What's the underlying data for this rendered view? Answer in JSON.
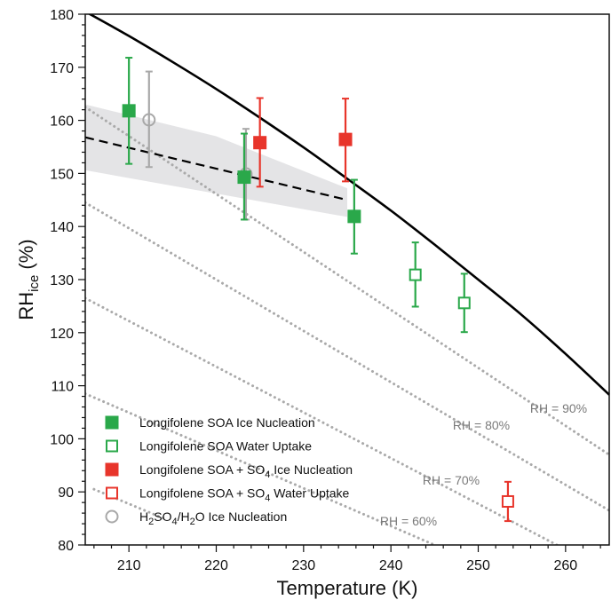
{
  "chart_data": {
    "type": "scatter",
    "xlabel": "Temperature (K)",
    "ylabel": {
      "main": "RH",
      "sub": "ice",
      "rest": " (%)"
    },
    "xlim": [
      205,
      265
    ],
    "ylim": [
      80,
      180
    ],
    "xticks_labeled": [
      210,
      220,
      230,
      240,
      250,
      260
    ],
    "yticks_labeled": [
      80,
      90,
      100,
      110,
      120,
      130,
      140,
      150,
      160,
      170,
      180
    ],
    "x_minor_step": 2,
    "y_minor_step": 2,
    "grid": false,
    "legend_position": "bottom-left",
    "water_saturation_line": {
      "style": "solid",
      "color": "#000000",
      "x": [
        205,
        210,
        215,
        220,
        225,
        230,
        235,
        240,
        245,
        250,
        255,
        260,
        265
      ],
      "y": [
        180.5,
        175.9,
        171.0,
        165.9,
        160.5,
        154.9,
        149.0,
        143.0,
        136.6,
        130.0,
        123.3,
        116.0,
        108.3
      ]
    },
    "fit_line": {
      "style": "dashed",
      "color": "#000000",
      "x": [
        205,
        235
      ],
      "y": [
        156.8,
        145.0
      ]
    },
    "uncertainty_band": {
      "color": "#e4e4e6",
      "x": [
        205,
        220,
        235
      ],
      "upper": [
        163.0,
        157.0,
        147.2
      ],
      "lower": [
        150.6,
        146.2,
        141.8
      ]
    },
    "rh_isolines": [
      {
        "label": "RH = 90%",
        "color": "#aaaaaa",
        "x": [
          205,
          265
        ],
        "y": [
          162.5,
          97.0
        ]
      },
      {
        "label": "RH = 80%",
        "color": "#aaaaaa",
        "x": [
          205,
          265
        ],
        "y": [
          144.5,
          86.5
        ]
      },
      {
        "label": "RH = 70%",
        "color": "#aaaaaa",
        "x": [
          205,
          259
        ],
        "y": [
          126.5,
          80.0
        ]
      },
      {
        "label": "RH = 60%",
        "color": "#aaaaaa",
        "x": [
          205,
          245
        ],
        "y": [
          108.5,
          80.0
        ]
      },
      {
        "label": "",
        "color": "#aaaaaa",
        "x": [
          206,
          214
        ],
        "y": [
          90.5,
          85.0
        ]
      }
    ],
    "series": [
      {
        "name": "Longifolene SOA Ice Nucleation",
        "marker": "square-filled",
        "color": "#2aa84a",
        "points": [
          {
            "x": 210.0,
            "y": 161.8,
            "err_up": 171.8,
            "err_down": 151.8
          },
          {
            "x": 223.2,
            "y": 149.3,
            "err_up": 157.5,
            "err_down": 141.3
          },
          {
            "x": 235.8,
            "y": 141.9,
            "err_up": 148.8,
            "err_down": 134.9
          }
        ]
      },
      {
        "name": "Longifolene SOA Water Uptake",
        "marker": "square-open",
        "color": "#2aa84a",
        "points": [
          {
            "x": 242.8,
            "y": 130.9,
            "err_up": 137.0,
            "err_down": 124.9
          },
          {
            "x": 248.4,
            "y": 125.6,
            "err_up": 131.1,
            "err_down": 120.1
          }
        ]
      },
      {
        "name": "Longifolene SOA + SO4 Ice Nucleation",
        "marker": "square-filled",
        "color": "#e8352b",
        "points": [
          {
            "x": 225.0,
            "y": 155.8,
            "err_up": 164.2,
            "err_down": 147.5
          },
          {
            "x": 234.8,
            "y": 156.4,
            "err_up": 164.1,
            "err_down": 148.5
          }
        ]
      },
      {
        "name": "Longifolene SOA + SO4 Water Uptake",
        "marker": "square-open",
        "color": "#e8352b",
        "points": [
          {
            "x": 253.4,
            "y": 88.2,
            "err_up": 91.9,
            "err_down": 84.5
          }
        ]
      },
      {
        "name": "H2SO4/H2O Ice Nucleation",
        "marker": "circle-open",
        "color": "#a8a8a8",
        "points": [
          {
            "x": 212.3,
            "y": 160.1,
            "err_up": 169.2,
            "err_down": 151.2
          },
          {
            "x": 223.4,
            "y": 149.9,
            "err_up": 158.4,
            "err_down": 141.3
          }
        ]
      }
    ],
    "legend": [
      {
        "segments": [
          {
            "t": "Longifolene SOA Ice Nucleation"
          }
        ]
      },
      {
        "segments": [
          {
            "t": "Longifolene SOA Water Uptake"
          }
        ]
      },
      {
        "segments": [
          {
            "t": "Longifolene SOA + SO"
          },
          {
            "t": "4",
            "sub": true
          },
          {
            "t": " Ice Nucleation"
          }
        ]
      },
      {
        "segments": [
          {
            "t": "Longifolene SOA + SO"
          },
          {
            "t": "4",
            "sub": true
          },
          {
            "t": " Water Uptake"
          }
        ]
      },
      {
        "segments": [
          {
            "t": "H"
          },
          {
            "t": "2",
            "sub": true
          },
          {
            "t": "SO"
          },
          {
            "t": "4",
            "sub": true
          },
          {
            "t": "/H"
          },
          {
            "t": "2",
            "sub": true
          },
          {
            "t": "O Ice Nucleation"
          }
        ]
      }
    ]
  }
}
